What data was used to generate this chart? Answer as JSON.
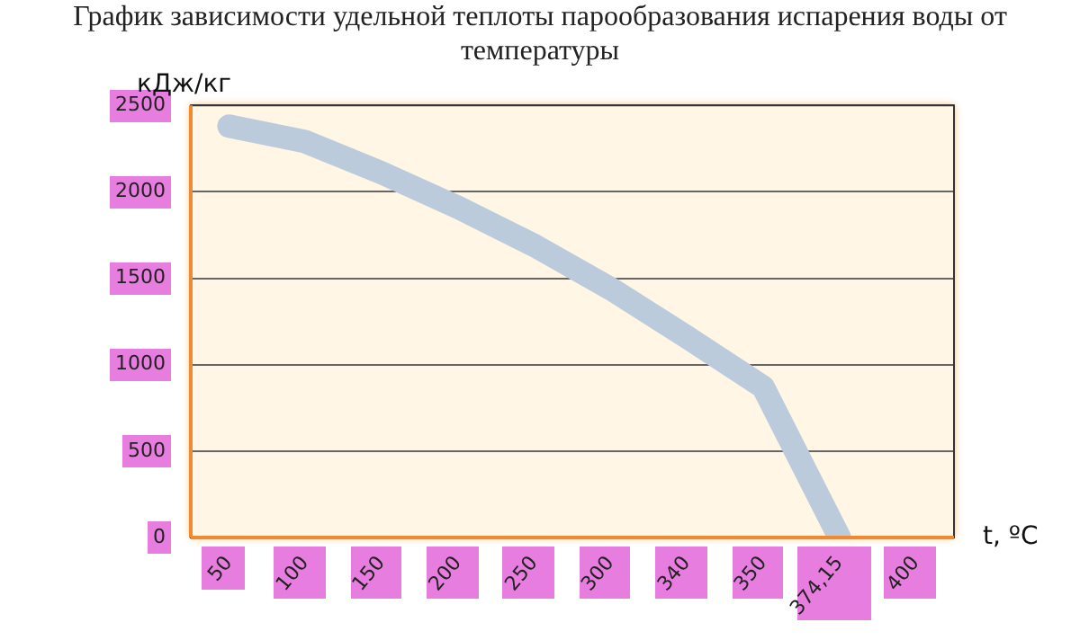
{
  "chart_data": {
    "type": "line",
    "title": "График зависимости удельной теплоты парообразования испарения воды от температуры",
    "xlabel": "t, ºC",
    "ylabel": "кДж/кг",
    "categories": [
      "50",
      "100",
      "150",
      "200",
      "250",
      "300",
      "340",
      "350",
      "374,15",
      "400"
    ],
    "series": [
      {
        "color": "#bccbdc",
        "values": [
          2380,
          2290,
          2110,
          1910,
          1690,
          1440,
          1160,
          870,
          0,
          null
        ]
      }
    ],
    "ylim": [
      0,
      2500
    ],
    "yticks": [
      0,
      500,
      1000,
      1500,
      2000,
      2500
    ],
    "grid": "y",
    "legend": false,
    "marker": "none",
    "line_style": "solid"
  }
}
